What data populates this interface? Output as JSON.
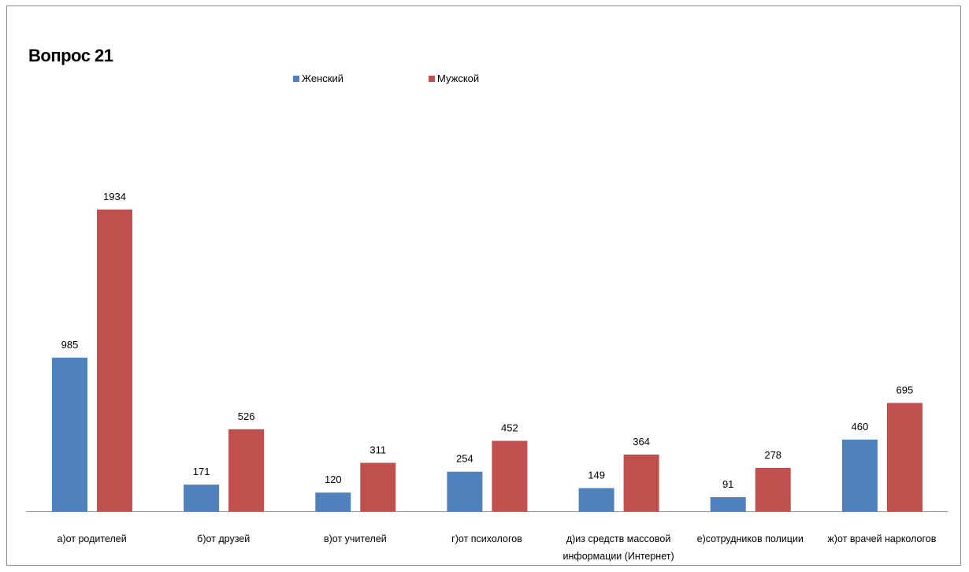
{
  "chart_data": {
    "type": "bar",
    "title": "Вопрос 21",
    "categories": [
      [
        "а)от родителей"
      ],
      [
        "б)от друзей"
      ],
      [
        "в)от учителей"
      ],
      [
        "г)от психологов"
      ],
      [
        "д)из средств массовой",
        "информации (Интернет)"
      ],
      [
        "е)сотрудников полиции"
      ],
      [
        "ж)от врачей наркологов"
      ]
    ],
    "series": [
      {
        "name": "Женский",
        "color": "#4f81bd",
        "values": [
          985,
          171,
          120,
          254,
          149,
          91,
          460
        ]
      },
      {
        "name": "Мужской",
        "color": "#c0504d",
        "values": [
          1934,
          526,
          311,
          452,
          364,
          278,
          695
        ]
      }
    ],
    "ylim": [
      0,
      2000
    ],
    "grid": false,
    "legend_position": "top"
  }
}
